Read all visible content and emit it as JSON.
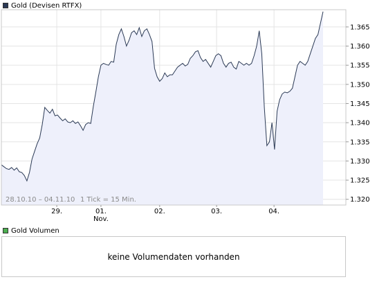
{
  "price_legend": {
    "label": "Gold (Devisen RTFX)",
    "color": "#2b3a55"
  },
  "volume_legend": {
    "label": "Gold Volumen",
    "color": "#4caf50"
  },
  "volume_message": "keine Volumendaten vorhanden",
  "chart_data": {
    "type": "area",
    "date_range_label": "28.10.10 – 04.11.10",
    "tick_info_label": "1 Tick = 15 Min.",
    "ylim": [
      1.3185,
      1.3695
    ],
    "y_ticks": [
      "1.320",
      "1.325",
      "1.330",
      "1.335",
      "1.340",
      "1.345",
      "1.350",
      "1.355",
      "1.360",
      "1.365"
    ],
    "x_tick_labels": [
      {
        "label": "29.",
        "sublabel": ""
      },
      {
        "label": "01.",
        "sublabel": "Nov."
      },
      {
        "label": "02.",
        "sublabel": ""
      },
      {
        "label": "03.",
        "sublabel": ""
      },
      {
        "label": "04.",
        "sublabel": ""
      }
    ],
    "x_ticks_index": [
      21.7,
      39.0,
      62.0,
      84.3,
      106.8
    ],
    "n_points": 127,
    "grid": true,
    "line_color": "#2b3a55",
    "fill_color": "#eef0fb",
    "series": [
      {
        "values": [
          1.329,
          1.3285,
          1.328,
          1.3278,
          1.3283,
          1.3276,
          1.3282,
          1.3272,
          1.327,
          1.3262,
          1.3248,
          1.327,
          1.3305,
          1.3325,
          1.3345,
          1.336,
          1.3395,
          1.344,
          1.3432,
          1.3425,
          1.3435,
          1.3418,
          1.342,
          1.3412,
          1.3405,
          1.341,
          1.3402,
          1.34,
          1.3405,
          1.3398,
          1.3402,
          1.3392,
          1.338,
          1.3395,
          1.34,
          1.3398,
          1.3442,
          1.348,
          1.352,
          1.355,
          1.3555,
          1.3552,
          1.355,
          1.356,
          1.3558,
          1.3605,
          1.363,
          1.3645,
          1.3625,
          1.36,
          1.3615,
          1.3635,
          1.364,
          1.363,
          1.3648,
          1.3625,
          1.364,
          1.3645,
          1.363,
          1.3612,
          1.3542,
          1.352,
          1.3508,
          1.3515,
          1.353,
          1.352,
          1.3525,
          1.3525,
          1.3535,
          1.3545,
          1.355,
          1.3555,
          1.3548,
          1.3552,
          1.3568,
          1.3575,
          1.3585,
          1.3588,
          1.357,
          1.356,
          1.3565,
          1.3555,
          1.3545,
          1.356,
          1.3575,
          1.358,
          1.3575,
          1.3555,
          1.3545,
          1.3555,
          1.3558,
          1.3545,
          1.354,
          1.356,
          1.3555,
          1.355,
          1.3555,
          1.355,
          1.3555,
          1.3575,
          1.36,
          1.364,
          1.358,
          1.344,
          1.334,
          1.335,
          1.34,
          1.333,
          1.343,
          1.346,
          1.3475,
          1.348,
          1.3478,
          1.3482,
          1.349,
          1.352,
          1.355,
          1.356,
          1.3555,
          1.355,
          1.356,
          1.358,
          1.36,
          1.362,
          1.363,
          1.366,
          1.369
        ]
      }
    ]
  }
}
